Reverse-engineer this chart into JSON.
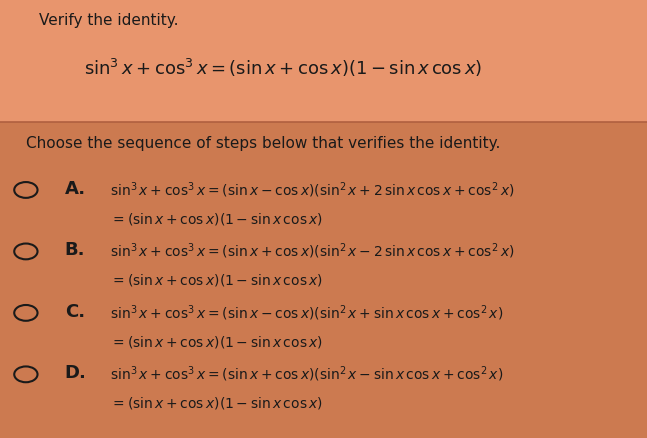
{
  "bg_color": "#E8956D",
  "top_bg_color": "#E8956D",
  "bottom_bg_color": "#D4845A",
  "title": "Verify the identity.",
  "identity": "sin³ x + cos³ x = (sin x + cos x)(1 − sin x cos x)",
  "question": "Choose the sequence of steps below that verifies the identity.",
  "options": [
    {
      "label": "A.",
      "line1": "sin³ x + cos³ x = (sin x − cos x)(sin² x + 2 sin x cos x + cos² x)",
      "line2": "= (sin x + cos x)(1 − sin x cos x)"
    },
    {
      "label": "B.",
      "line1": "sin³ x + cos³ x = (sin x + cos x)(sin² x − 2 sin x cos x + cos² x)",
      "line2": "= (sin x + cos x)(1 − sin x cos x)"
    },
    {
      "label": "C.",
      "line1": "sin³ x + cos³ x = (sin x − cos x)(sin² x + sin x cos x + cos² x)",
      "line2": "= (sin x + cos x)(1 − sin x cos x)"
    },
    {
      "label": "D.",
      "line1": "sin³ x + cos³ x = (sin x + cos x)(sin² x − sin x cos x + cos² x)",
      "line2": "= (sin x + cos x)(1 − sin x cos x)"
    }
  ],
  "text_color": "#1a1a1a",
  "circle_color": "#1a1a1a",
  "divider_color": "#b06040",
  "font_size_title": 11,
  "font_size_identity": 13,
  "font_size_question": 11,
  "font_size_options": 10,
  "font_size_label": 13
}
